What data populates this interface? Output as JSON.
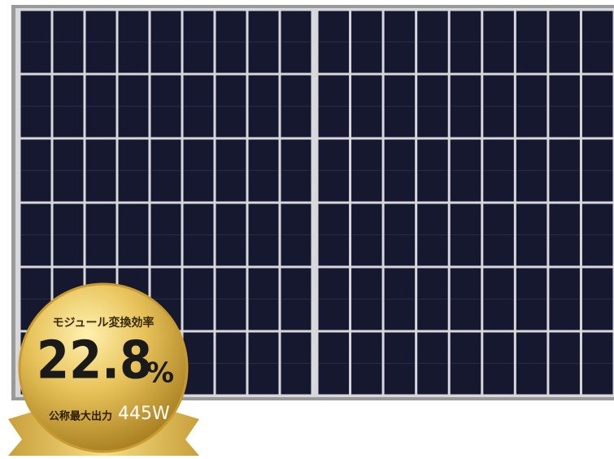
{
  "badge": {
    "label": "モジュール変換効率",
    "value": "22.8",
    "unit": "%",
    "output_label": "公称最大出力",
    "output_value": "445W"
  }
}
